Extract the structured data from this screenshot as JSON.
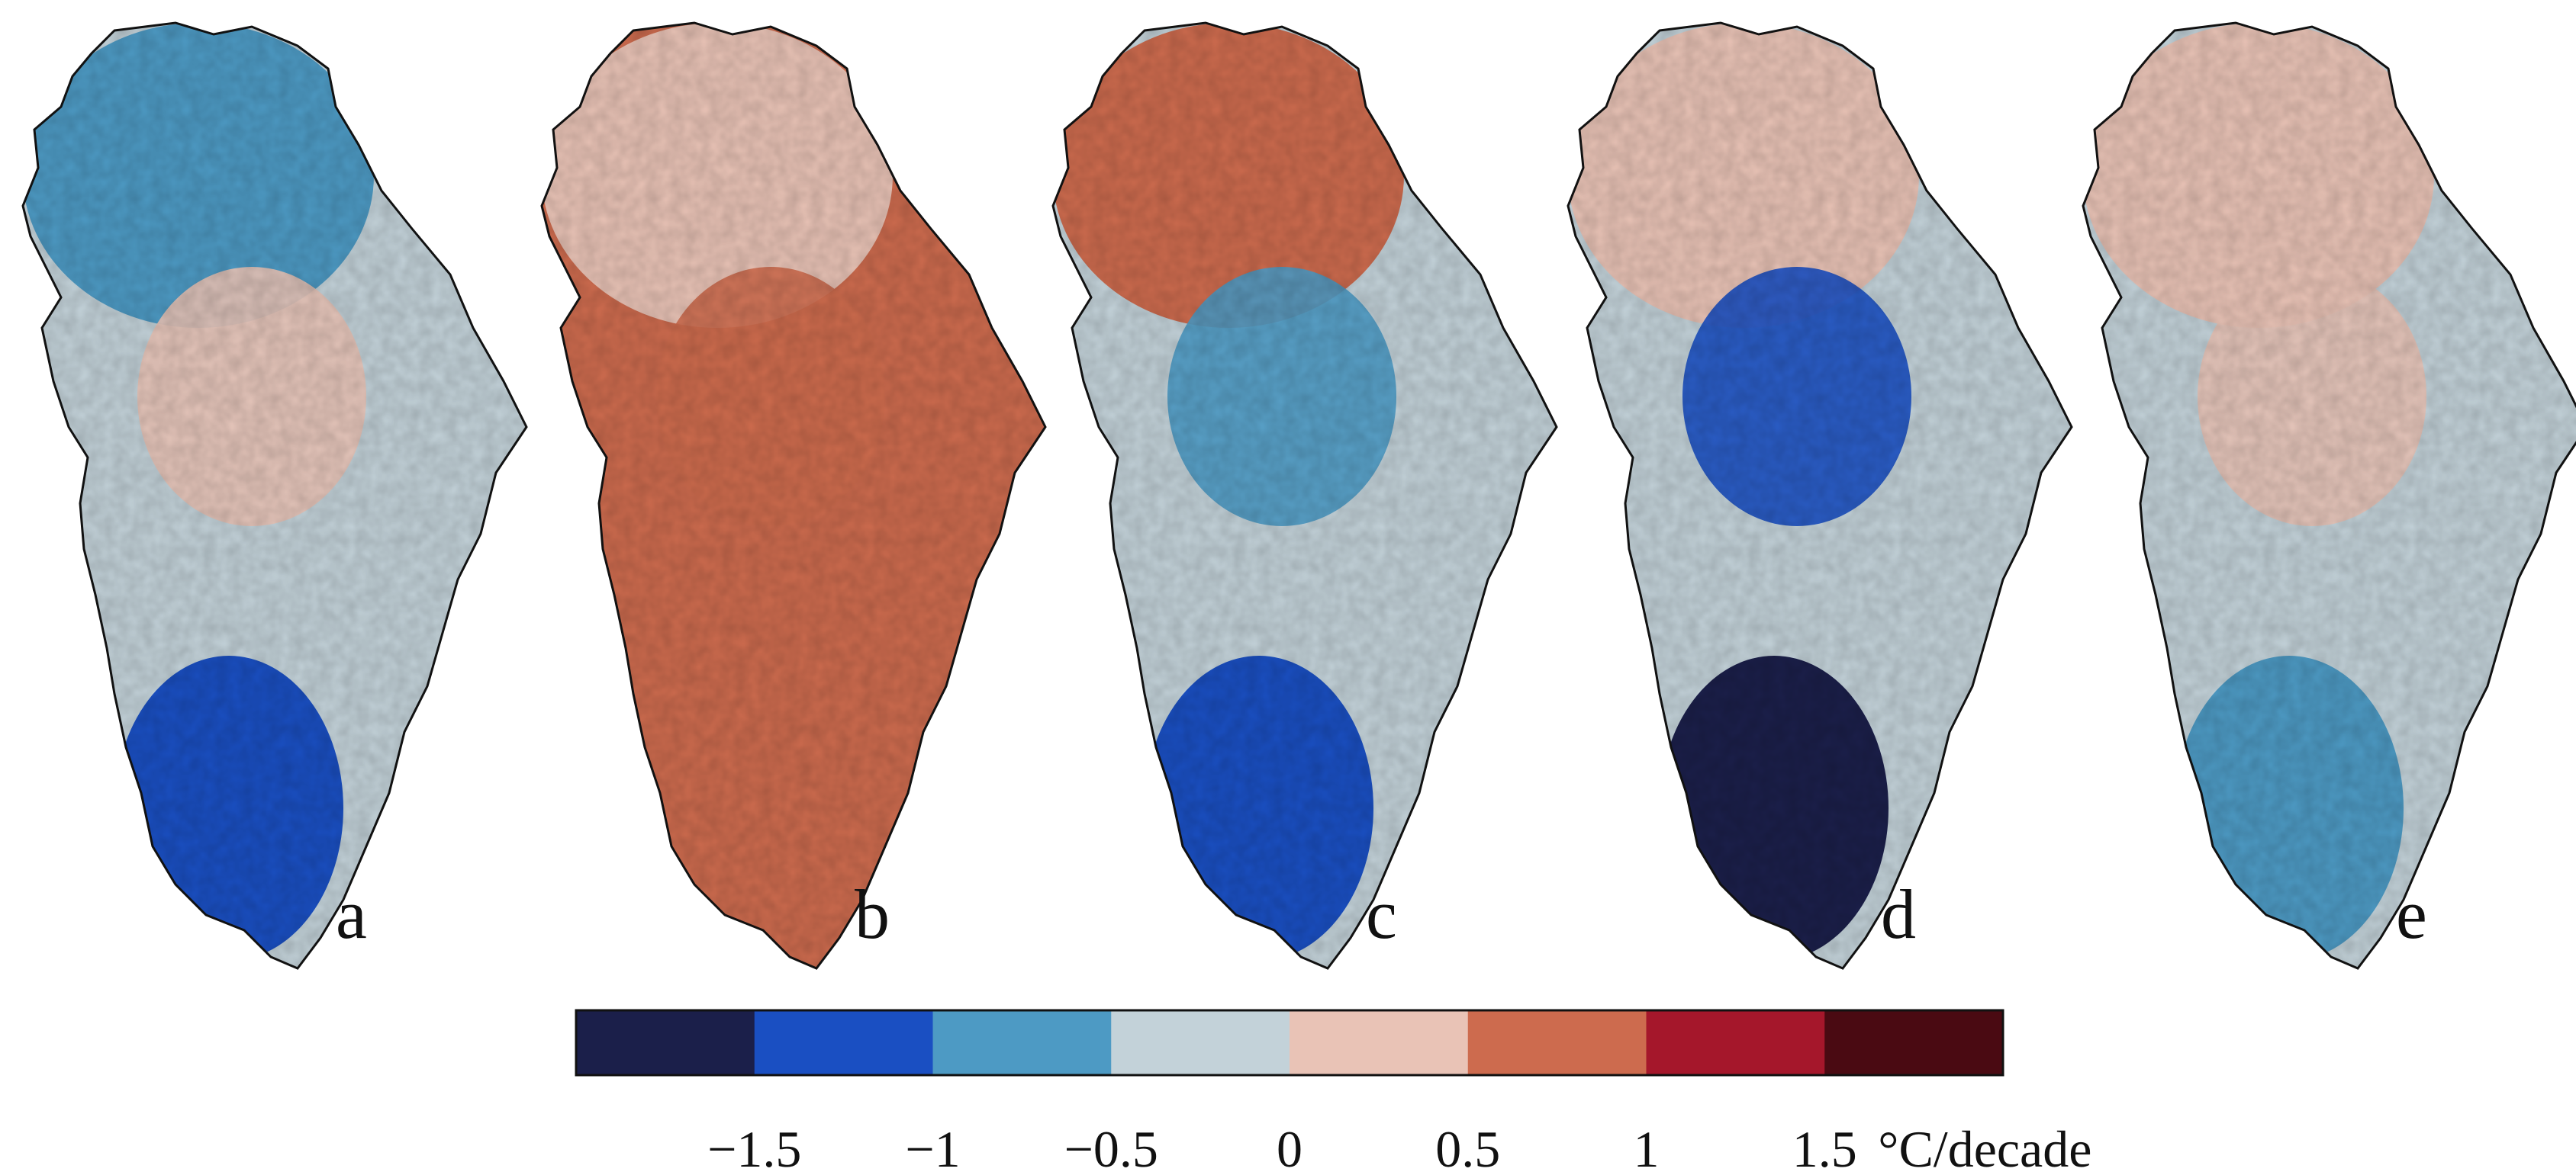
{
  "figure": {
    "panels": [
      {
        "id": "a",
        "label": "a",
        "north": 2,
        "center": 3,
        "blob": 4,
        "south": 1
      },
      {
        "id": "b",
        "label": "b",
        "north": 4,
        "center": 5,
        "blob": 5,
        "south": 5
      },
      {
        "id": "c",
        "label": "c",
        "north": 5,
        "center": 3,
        "blob": 2,
        "south": 1
      },
      {
        "id": "d",
        "label": "d",
        "north": 4,
        "center": 3,
        "blob": 1,
        "south": 0
      },
      {
        "id": "e",
        "label": "e",
        "north": 4,
        "center": 3,
        "blob": 4,
        "south": 2
      }
    ]
  },
  "colorbar": {
    "colors": [
      "#1b1f4a",
      "#1a4fc2",
      "#4d9ac4",
      "#c3d2d9",
      "#e9c3b6",
      "#cd6b4e",
      "#a5172b",
      "#4a0a12"
    ],
    "ticks": [
      "−1.5",
      "−1",
      "−0.5",
      "0",
      "0.5",
      "1",
      "1.5"
    ],
    "unit": "°C/decade"
  }
}
